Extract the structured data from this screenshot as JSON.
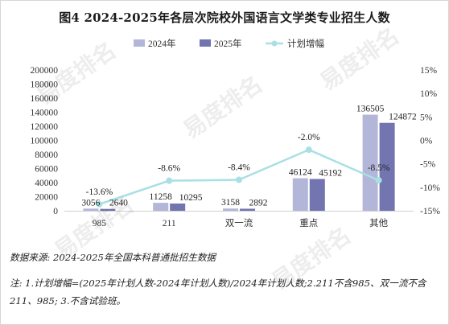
{
  "title": "图4  2024-2025年各层次院校外国语言文学类专业招生人数",
  "source": "数据来源:  2024-2025年全国本科普通批招生数据",
  "note": "注:  1.计划增幅=(2025年计划人数-2024年计划人数)/2024年计划人数;2.211不含985、双一流不含211、985;  3.不含试验班。",
  "watermark": "易度排名",
  "chart_data": {
    "type": "bar",
    "categories": [
      "985",
      "211",
      "双一流",
      "重点",
      "其他"
    ],
    "series": [
      {
        "name": "2024年",
        "type": "bar",
        "axis": "left",
        "color": "#b3b6d9",
        "values": [
          3056,
          11258,
          3158,
          46124,
          136505
        ]
      },
      {
        "name": "2025年",
        "type": "bar",
        "axis": "left",
        "color": "#7275b0",
        "values": [
          2640,
          10295,
          2892,
          45192,
          124872
        ]
      },
      {
        "name": "计划增幅",
        "type": "line",
        "axis": "right",
        "color": "#a8e0e3",
        "values": [
          -13.6,
          -8.6,
          -8.4,
          -2.0,
          -8.5
        ],
        "labels": [
          "-13.6%",
          "-8.6%",
          "-8.4%",
          "-2.0%",
          "-8.5%"
        ]
      }
    ],
    "y_left": {
      "min": 0,
      "max": 200000,
      "ticks": [
        0,
        20000,
        40000,
        60000,
        80000,
        100000,
        120000,
        140000,
        160000,
        180000,
        200000
      ]
    },
    "y_right": {
      "min": -15,
      "max": 15,
      "ticks": [
        "-15%",
        "-10%",
        "-5%",
        "0%",
        "5%",
        "10%",
        "15%"
      ]
    },
    "legend_position": "top-center",
    "grid": false
  }
}
